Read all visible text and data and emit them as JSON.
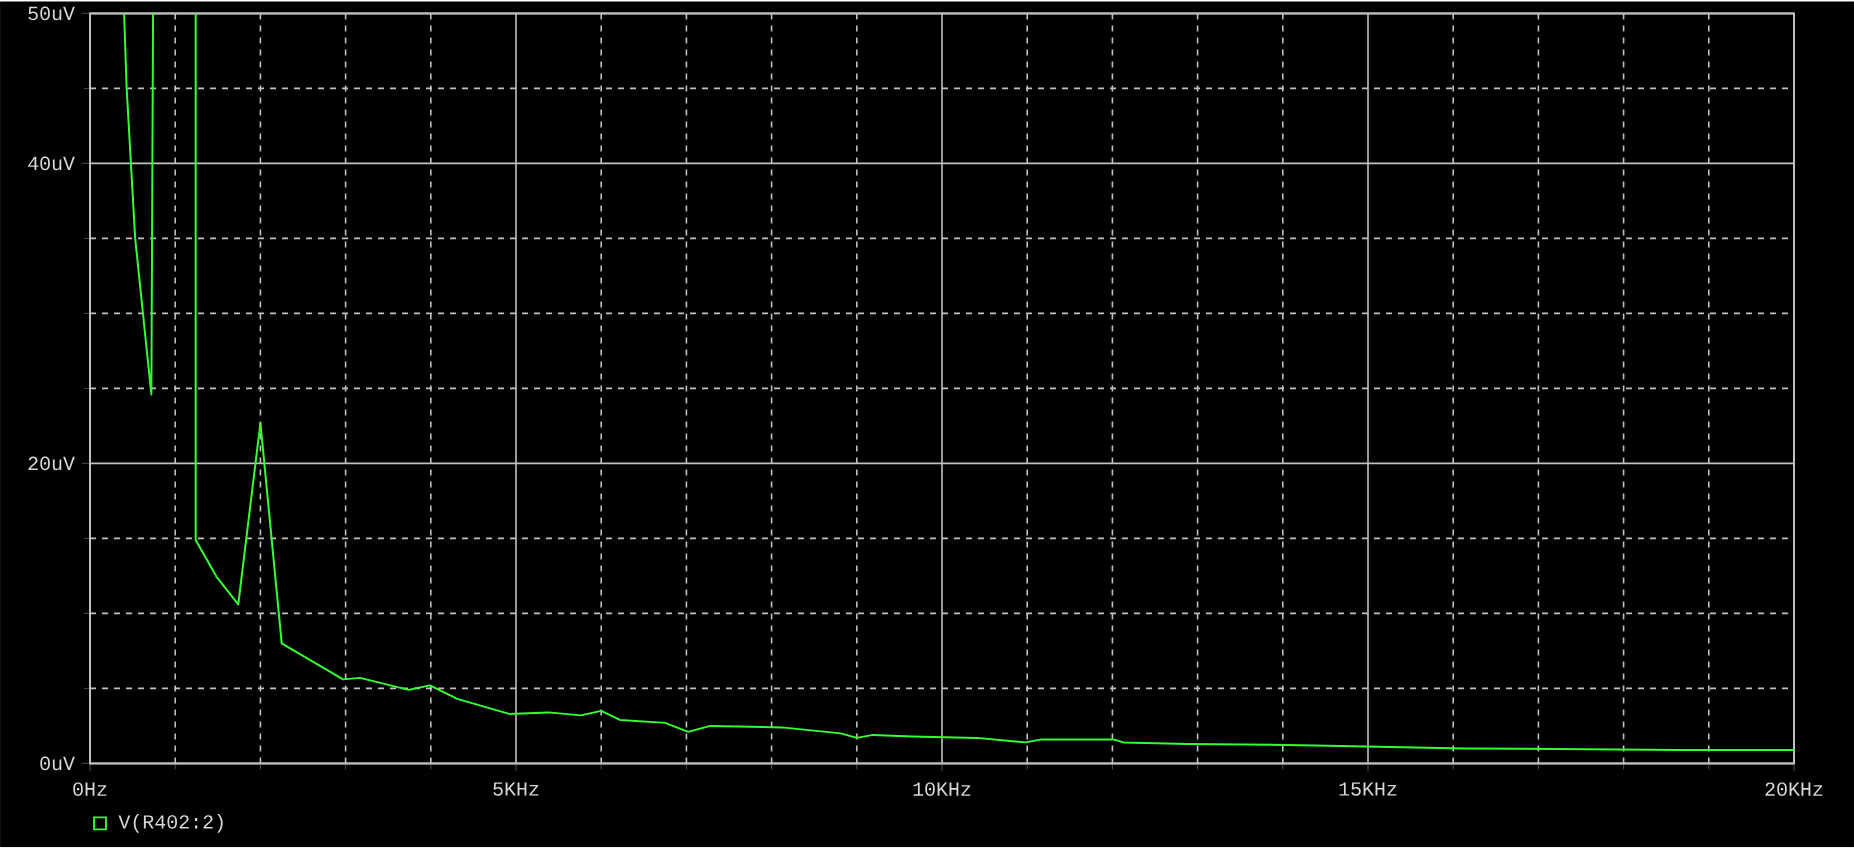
{
  "chart_data": {
    "type": "line",
    "x": [
      0.4,
      0.43,
      0.53,
      0.72,
      0.74,
      1.0,
      1.24,
      1.24,
      1.49,
      1.74,
      2.0,
      2.25,
      2.97,
      3.17,
      3.74,
      3.99,
      4.31,
      4.92,
      5.38,
      5.76,
      6.0,
      6.22,
      6.75,
      7.02,
      7.28,
      8.12,
      8.81,
      9.0,
      9.19,
      9.65,
      10.41,
      10.98,
      11.17,
      12.01,
      12.13,
      12.89,
      14.38,
      16.13,
      18.65,
      20.0
    ],
    "series": [
      {
        "name": "V(R402:2)",
        "color": "#33ff33",
        "values": [
          50,
          45.0,
          35.0,
          24.6,
          50,
          null,
          50,
          14.9,
          12.4,
          10.6,
          22.7,
          8.0,
          5.6,
          5.7,
          4.9,
          5.2,
          4.3,
          3.3,
          3.4,
          3.2,
          3.5,
          2.9,
          2.7,
          2.1,
          2.5,
          2.4,
          2.0,
          1.7,
          1.9,
          1.8,
          1.7,
          1.4,
          1.6,
          1.6,
          1.4,
          1.3,
          1.2,
          1.0,
          0.9,
          0.9
        ]
      }
    ],
    "xlim": [
      0,
      20
    ],
    "ylim": [
      0,
      50
    ],
    "xticks": [
      {
        "value": 0,
        "label": "0Hz"
      },
      {
        "value": 1,
        "label": null
      },
      {
        "value": 2,
        "label": null
      },
      {
        "value": 3,
        "label": null
      },
      {
        "value": 4,
        "label": null
      },
      {
        "value": 5,
        "label": "5KHz"
      },
      {
        "value": 6,
        "label": null
      },
      {
        "value": 7,
        "label": null
      },
      {
        "value": 8,
        "label": null
      },
      {
        "value": 9,
        "label": null
      },
      {
        "value": 10,
        "label": "10KHz"
      },
      {
        "value": 11,
        "label": null
      },
      {
        "value": 12,
        "label": null
      },
      {
        "value": 13,
        "label": null
      },
      {
        "value": 14,
        "label": null
      },
      {
        "value": 15,
        "label": "15KHz"
      },
      {
        "value": 16,
        "label": null
      },
      {
        "value": 17,
        "label": null
      },
      {
        "value": 18,
        "label": null
      },
      {
        "value": 19,
        "label": null
      },
      {
        "value": 20,
        "label": "20KHz"
      }
    ],
    "yticks": [
      {
        "value": 0,
        "label": "0uV"
      },
      {
        "value": 5,
        "label": null
      },
      {
        "value": 10,
        "label": null
      },
      {
        "value": 15,
        "label": null
      },
      {
        "value": 20,
        "label": "20uV"
      },
      {
        "value": 25,
        "label": null
      },
      {
        "value": 30,
        "label": null
      },
      {
        "value": 35,
        "label": null
      },
      {
        "value": 40,
        "label": "40uV"
      },
      {
        "value": 45,
        "label": null
      },
      {
        "value": 50,
        "label": "50uV"
      }
    ],
    "grid": true,
    "legend": "bottom left",
    "marker": "none",
    "line_style": "solid"
  }
}
